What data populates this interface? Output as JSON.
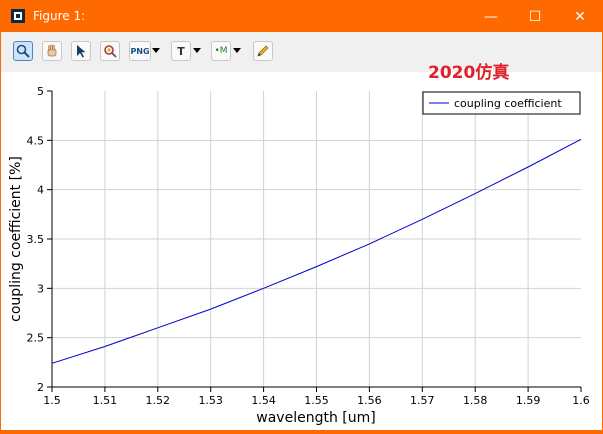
{
  "window": {
    "title": "Figure 1:",
    "minimize_glyph": "—",
    "maximize_glyph": "☐",
    "close_glyph": "✕"
  },
  "toolbar": {
    "tools": [
      {
        "name": "zoom-tool",
        "icon": "magnifier-icon",
        "glyph": "🔍"
      },
      {
        "name": "pan-tool",
        "icon": "hand-icon",
        "glyph": "✋"
      },
      {
        "name": "select-tool",
        "icon": "arrow-cursor-icon",
        "glyph": "↖"
      },
      {
        "name": "datatip-tool",
        "icon": "datatip-icon",
        "glyph": "⌖"
      },
      {
        "name": "export-png-tool",
        "icon": "png-export-icon",
        "glyph": "PNG"
      },
      {
        "name": "text-tool",
        "icon": "text-icon",
        "glyph": "T"
      },
      {
        "name": "marker-tool",
        "icon": "marker-icon",
        "glyph": "•M"
      },
      {
        "name": "draw-tool",
        "icon": "pencil-icon",
        "glyph": "✎"
      }
    ]
  },
  "annotation": "2020仿真",
  "chart_data": {
    "type": "line",
    "title": "",
    "xlabel": "wavelength [um]",
    "ylabel": "coupling coefficient [%]",
    "xlim": [
      1.5,
      1.6
    ],
    "ylim": [
      2,
      5
    ],
    "x_ticks": [
      1.5,
      1.51,
      1.52,
      1.53,
      1.54,
      1.55,
      1.56,
      1.57,
      1.58,
      1.59,
      1.6
    ],
    "x_tick_labels": [
      "1.5",
      "1.51",
      "1.52",
      "1.53",
      "1.54",
      "1.55",
      "1.56",
      "1.57",
      "1.58",
      "1.59",
      "1.6"
    ],
    "y_ticks": [
      2,
      2.5,
      3,
      3.5,
      4,
      4.5,
      5
    ],
    "y_tick_labels": [
      "2",
      "2.5",
      "3",
      "3.5",
      "4",
      "4.5",
      "5"
    ],
    "grid": true,
    "legend": {
      "position": "top-right"
    },
    "series": [
      {
        "name": "coupling coefficient",
        "color": "#0000cc",
        "x": [
          1.5,
          1.51,
          1.52,
          1.53,
          1.54,
          1.55,
          1.56,
          1.57,
          1.58,
          1.59,
          1.6
        ],
        "y": [
          2.24,
          2.41,
          2.6,
          2.79,
          3.0,
          3.22,
          3.45,
          3.7,
          3.96,
          4.23,
          4.51
        ]
      }
    ]
  }
}
